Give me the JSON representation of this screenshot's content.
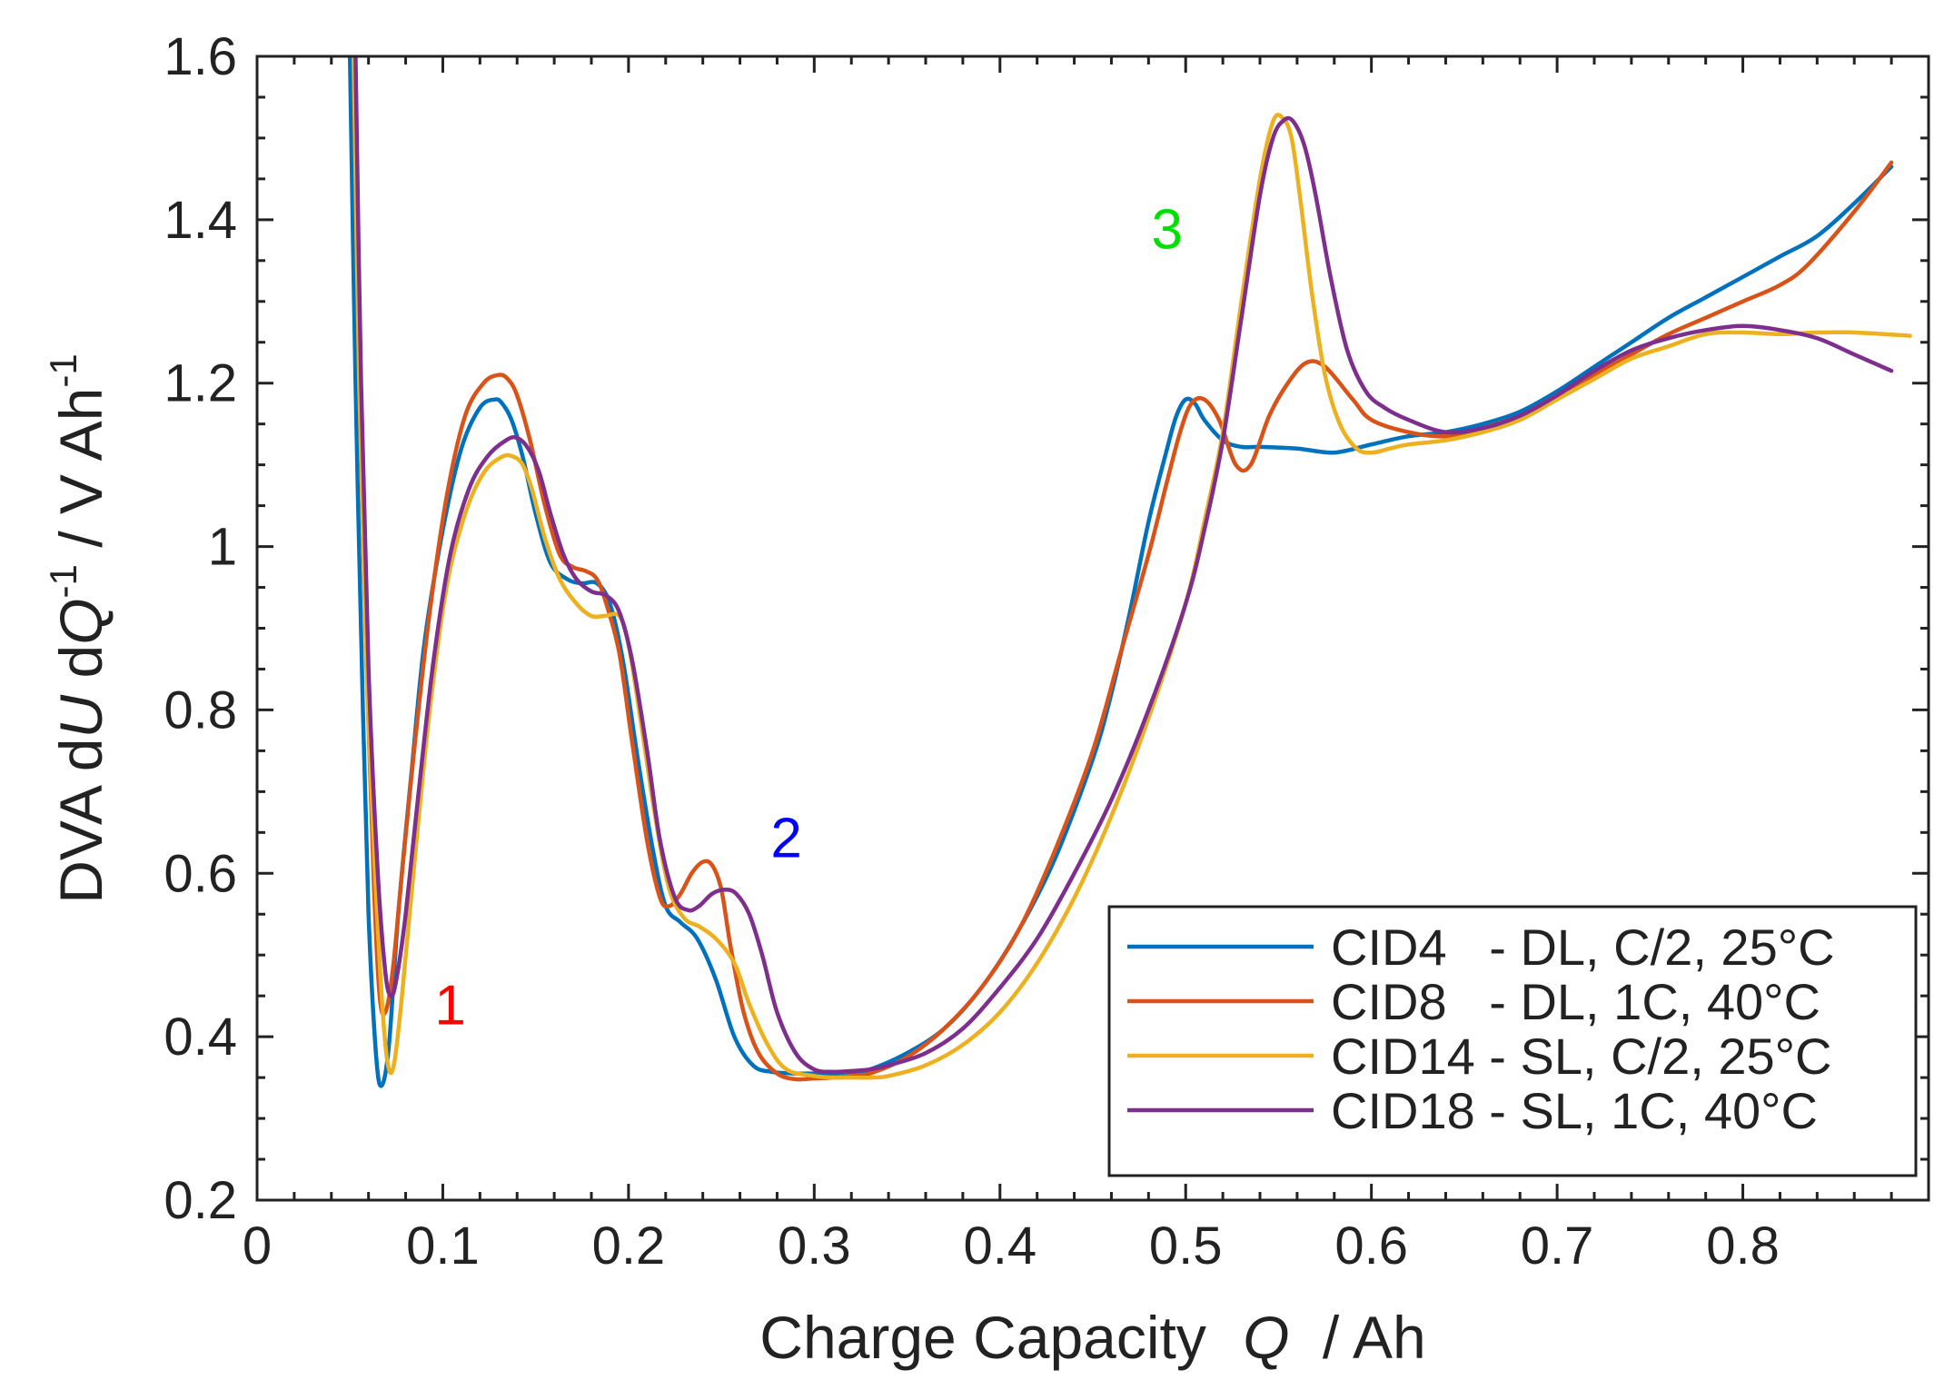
{
  "chart_data": {
    "type": "line",
    "title": "",
    "xlabel": "Charge Capacity",
    "xlabel_var": "Q",
    "xlabel_unit": "/ Ah",
    "ylabel": {
      "prefix": "DVA d",
      "var_u": "U",
      "mid": " d",
      "var_q": "Q",
      "sup1": "-1",
      "suffix": " / V Ah",
      "sup2": "-1"
    },
    "xlim": [
      0,
      0.9
    ],
    "ylim": [
      0.2,
      1.6
    ],
    "xticks": [
      0,
      0.1,
      0.2,
      0.3,
      0.4,
      0.5,
      0.6,
      0.7,
      0.8
    ],
    "xtick_labels": [
      "0",
      "0.1",
      "0.2",
      "0.3",
      "0.4",
      "0.5",
      "0.6",
      "0.7",
      "0.8"
    ],
    "yticks": [
      0.2,
      0.4,
      0.6,
      0.8,
      1.0,
      1.2,
      1.4,
      1.6
    ],
    "ytick_labels": [
      "0.2",
      "0.4",
      "0.6",
      "0.8",
      "1",
      "1.2",
      "1.4",
      "1.6"
    ],
    "legend_position": "bottom-right",
    "series": [
      {
        "name": "CID4   - DL, C/2, 25°C",
        "color": "#0072BD",
        "x": [
          0.05,
          0.053,
          0.057,
          0.06,
          0.064,
          0.067,
          0.071,
          0.076,
          0.083,
          0.09,
          0.1,
          0.11,
          0.12,
          0.128,
          0.132,
          0.137,
          0.143,
          0.15,
          0.158,
          0.167,
          0.175,
          0.183,
          0.19,
          0.197,
          0.205,
          0.213,
          0.22,
          0.228,
          0.237,
          0.247,
          0.257,
          0.267,
          0.277,
          0.29,
          0.3,
          0.31,
          0.32,
          0.33,
          0.35,
          0.37,
          0.39,
          0.41,
          0.43,
          0.45,
          0.46,
          0.47,
          0.48,
          0.49,
          0.495,
          0.5,
          0.505,
          0.51,
          0.52,
          0.53,
          0.54,
          0.56,
          0.58,
          0.6,
          0.62,
          0.64,
          0.66,
          0.68,
          0.7,
          0.72,
          0.74,
          0.76,
          0.78,
          0.8,
          0.82,
          0.84,
          0.86,
          0.88
        ],
        "values": [
          1.6,
          1.2,
          0.8,
          0.55,
          0.38,
          0.34,
          0.39,
          0.55,
          0.72,
          0.88,
          1.02,
          1.12,
          1.17,
          1.18,
          1.175,
          1.155,
          1.11,
          1.04,
          0.98,
          0.96,
          0.955,
          0.955,
          0.93,
          0.86,
          0.74,
          0.63,
          0.56,
          0.54,
          0.52,
          0.47,
          0.4,
          0.365,
          0.357,
          0.355,
          0.355,
          0.355,
          0.357,
          0.36,
          0.38,
          0.41,
          0.46,
          0.53,
          0.62,
          0.74,
          0.82,
          0.92,
          1.03,
          1.12,
          1.16,
          1.18,
          1.175,
          1.155,
          1.13,
          1.122,
          1.122,
          1.12,
          1.115,
          1.125,
          1.135,
          1.14,
          1.15,
          1.165,
          1.19,
          1.22,
          1.25,
          1.28,
          1.305,
          1.33,
          1.355,
          1.38,
          1.42,
          1.465
        ]
      },
      {
        "name": "CID8   - DL, 1C, 40°C",
        "color": "#D95319",
        "x": [
          0.052,
          0.055,
          0.059,
          0.063,
          0.066,
          0.069,
          0.073,
          0.078,
          0.085,
          0.093,
          0.102,
          0.112,
          0.122,
          0.13,
          0.135,
          0.14,
          0.147,
          0.155,
          0.163,
          0.17,
          0.177,
          0.183,
          0.188,
          0.195,
          0.202,
          0.21,
          0.217,
          0.222,
          0.228,
          0.234,
          0.24,
          0.245,
          0.25,
          0.255,
          0.262,
          0.27,
          0.28,
          0.29,
          0.3,
          0.31,
          0.32,
          0.33,
          0.35,
          0.37,
          0.39,
          0.41,
          0.43,
          0.45,
          0.465,
          0.48,
          0.49,
          0.497,
          0.503,
          0.51,
          0.518,
          0.527,
          0.535,
          0.545,
          0.555,
          0.565,
          0.575,
          0.59,
          0.6,
          0.62,
          0.64,
          0.66,
          0.68,
          0.7,
          0.72,
          0.74,
          0.76,
          0.78,
          0.8,
          0.82,
          0.835,
          0.86,
          0.88
        ],
        "values": [
          1.6,
          1.2,
          0.85,
          0.58,
          0.45,
          0.43,
          0.48,
          0.6,
          0.76,
          0.92,
          1.06,
          1.16,
          1.2,
          1.21,
          1.205,
          1.185,
          1.13,
          1.05,
          0.99,
          0.975,
          0.97,
          0.96,
          0.93,
          0.87,
          0.76,
          0.64,
          0.57,
          0.56,
          0.575,
          0.6,
          0.614,
          0.61,
          0.58,
          0.51,
          0.43,
          0.38,
          0.355,
          0.348,
          0.349,
          0.35,
          0.352,
          0.355,
          0.375,
          0.41,
          0.46,
          0.53,
          0.63,
          0.75,
          0.87,
          0.99,
          1.08,
          1.14,
          1.175,
          1.18,
          1.155,
          1.1,
          1.1,
          1.16,
          1.2,
          1.225,
          1.22,
          1.18,
          1.155,
          1.14,
          1.135,
          1.145,
          1.16,
          1.185,
          1.21,
          1.235,
          1.26,
          1.28,
          1.3,
          1.32,
          1.345,
          1.41,
          1.47
        ]
      },
      {
        "name": "CID14 - SL, C/2, 25°C",
        "color": "#EDB120",
        "x": [
          0.052,
          0.055,
          0.059,
          0.064,
          0.068,
          0.071,
          0.074,
          0.078,
          0.085,
          0.093,
          0.102,
          0.112,
          0.122,
          0.132,
          0.138,
          0.143,
          0.148,
          0.155,
          0.163,
          0.172,
          0.18,
          0.187,
          0.195,
          0.2,
          0.207,
          0.215,
          0.222,
          0.23,
          0.238,
          0.247,
          0.257,
          0.265,
          0.275,
          0.285,
          0.3,
          0.31,
          0.32,
          0.33,
          0.34,
          0.36,
          0.38,
          0.4,
          0.42,
          0.44,
          0.46,
          0.48,
          0.5,
          0.51,
          0.52,
          0.53,
          0.54,
          0.547,
          0.552,
          0.557,
          0.562,
          0.568,
          0.575,
          0.583,
          0.592,
          0.6,
          0.61,
          0.62,
          0.64,
          0.66,
          0.68,
          0.7,
          0.72,
          0.74,
          0.76,
          0.78,
          0.8,
          0.82,
          0.84,
          0.86,
          0.89
        ],
        "values": [
          1.6,
          1.2,
          0.85,
          0.58,
          0.42,
          0.36,
          0.37,
          0.45,
          0.62,
          0.8,
          0.95,
          1.04,
          1.09,
          1.11,
          1.11,
          1.1,
          1.07,
          1.01,
          0.96,
          0.93,
          0.915,
          0.915,
          0.915,
          0.88,
          0.78,
          0.66,
          0.58,
          0.545,
          0.535,
          0.52,
          0.49,
          0.44,
          0.39,
          0.36,
          0.352,
          0.35,
          0.35,
          0.35,
          0.352,
          0.365,
          0.39,
          0.43,
          0.49,
          0.57,
          0.67,
          0.79,
          0.93,
          1.03,
          1.14,
          1.3,
          1.45,
          1.52,
          1.525,
          1.5,
          1.42,
          1.31,
          1.21,
          1.15,
          1.12,
          1.115,
          1.12,
          1.125,
          1.13,
          1.14,
          1.155,
          1.18,
          1.205,
          1.23,
          1.245,
          1.26,
          1.262,
          1.26,
          1.262,
          1.262,
          1.258
        ]
      },
      {
        "name": "CID18 - SL, 1C, 40°C",
        "color": "#7E2F8E",
        "x": [
          0.053,
          0.056,
          0.06,
          0.065,
          0.069,
          0.072,
          0.075,
          0.08,
          0.087,
          0.095,
          0.104,
          0.114,
          0.124,
          0.134,
          0.14,
          0.146,
          0.152,
          0.158,
          0.165,
          0.172,
          0.18,
          0.188,
          0.195,
          0.202,
          0.21,
          0.217,
          0.225,
          0.232,
          0.238,
          0.245,
          0.252,
          0.258,
          0.265,
          0.272,
          0.28,
          0.29,
          0.3,
          0.31,
          0.32,
          0.33,
          0.34,
          0.36,
          0.38,
          0.4,
          0.42,
          0.44,
          0.46,
          0.48,
          0.5,
          0.51,
          0.52,
          0.53,
          0.54,
          0.547,
          0.553,
          0.558,
          0.564,
          0.57,
          0.578,
          0.587,
          0.597,
          0.607,
          0.62,
          0.64,
          0.66,
          0.68,
          0.7,
          0.72,
          0.74,
          0.76,
          0.78,
          0.8,
          0.82,
          0.84,
          0.86,
          0.88
        ],
        "values": [
          1.6,
          1.2,
          0.85,
          0.6,
          0.48,
          0.45,
          0.47,
          0.55,
          0.7,
          0.86,
          0.99,
          1.07,
          1.11,
          1.13,
          1.133,
          1.12,
          1.09,
          1.04,
          0.99,
          0.96,
          0.945,
          0.94,
          0.92,
          0.86,
          0.75,
          0.64,
          0.57,
          0.555,
          0.56,
          0.575,
          0.58,
          0.575,
          0.55,
          0.5,
          0.43,
          0.38,
          0.36,
          0.357,
          0.358,
          0.36,
          0.365,
          0.38,
          0.41,
          0.46,
          0.52,
          0.6,
          0.69,
          0.8,
          0.93,
          1.02,
          1.13,
          1.28,
          1.43,
          1.5,
          1.522,
          1.52,
          1.49,
          1.43,
          1.33,
          1.24,
          1.19,
          1.17,
          1.155,
          1.14,
          1.145,
          1.16,
          1.185,
          1.215,
          1.24,
          1.255,
          1.265,
          1.27,
          1.265,
          1.255,
          1.235,
          1.215
        ]
      }
    ],
    "annotations": [
      {
        "text": "1",
        "x": 0.104,
        "y": 0.415,
        "color": "#FF0000"
      },
      {
        "text": "2",
        "x": 0.285,
        "y": 0.62,
        "color": "#0000FF"
      },
      {
        "text": "3",
        "x": 0.49,
        "y": 1.365,
        "color": "#00E000"
      }
    ]
  }
}
